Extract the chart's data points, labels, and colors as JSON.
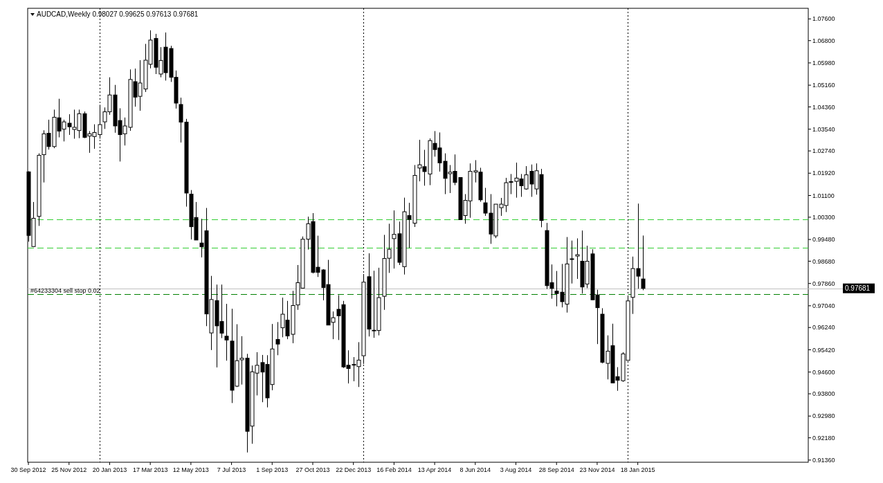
{
  "chart_data": {
    "type": "candlestick",
    "title": "AUDCAD,Weekly  0.98027 0.99625 0.97613 0.97681",
    "x": [
      "2012-09-30",
      "2012-10-07",
      "2012-10-14",
      "2012-10-21",
      "2012-10-28",
      "2012-11-04",
      "2012-11-11",
      "2012-11-18",
      "2012-11-25",
      "2012-12-02",
      "2012-12-09",
      "2012-12-16",
      "2012-12-23",
      "2012-12-30",
      "2013-01-06",
      "2013-01-13",
      "2013-01-20",
      "2013-01-27",
      "2013-02-03",
      "2013-02-10",
      "2013-02-17",
      "2013-02-24",
      "2013-03-03",
      "2013-03-10",
      "2013-03-17",
      "2013-03-24",
      "2013-03-31",
      "2013-04-07",
      "2013-04-14",
      "2013-04-21",
      "2013-04-28",
      "2013-05-05",
      "2013-05-12",
      "2013-05-19",
      "2013-05-26",
      "2013-06-02",
      "2013-06-09",
      "2013-06-16",
      "2013-06-23",
      "2013-06-30",
      "2013-07-07",
      "2013-07-14",
      "2013-07-21",
      "2013-07-28",
      "2013-08-04",
      "2013-08-11",
      "2013-08-18",
      "2013-08-25",
      "2013-09-01",
      "2013-09-08",
      "2013-09-15",
      "2013-09-22",
      "2013-09-29",
      "2013-10-06",
      "2013-10-13",
      "2013-10-20",
      "2013-10-27",
      "2013-11-03",
      "2013-11-10",
      "2013-11-17",
      "2013-11-24",
      "2013-12-01",
      "2013-12-08",
      "2013-12-15",
      "2013-12-22",
      "2013-12-29",
      "2014-01-05",
      "2014-01-12",
      "2014-01-19",
      "2014-01-26",
      "2014-02-02",
      "2014-02-09",
      "2014-02-16",
      "2014-02-23",
      "2014-03-02",
      "2014-03-09",
      "2014-03-16",
      "2014-03-23",
      "2014-03-30",
      "2014-04-06",
      "2014-04-13",
      "2014-04-20",
      "2014-04-27",
      "2014-05-04",
      "2014-05-11",
      "2014-05-18",
      "2014-05-25",
      "2014-06-01",
      "2014-06-08",
      "2014-06-15",
      "2014-06-22",
      "2014-06-29",
      "2014-07-06",
      "2014-07-13",
      "2014-07-20",
      "2014-07-27",
      "2014-08-03",
      "2014-08-10",
      "2014-08-17",
      "2014-08-24",
      "2014-08-31",
      "2014-09-07",
      "2014-09-14",
      "2014-09-21",
      "2014-09-28",
      "2014-10-05",
      "2014-10-12",
      "2014-10-19",
      "2014-10-26",
      "2014-11-02",
      "2014-11-09",
      "2014-11-16",
      "2014-11-23",
      "2014-11-30",
      "2014-12-07",
      "2014-12-14",
      "2014-12-21",
      "2014-12-28",
      "2015-01-04",
      "2015-01-11",
      "2015-01-18",
      "2015-01-25"
    ],
    "ohlc": [
      [
        1.0197,
        1.0199,
        0.994,
        0.9963
      ],
      [
        0.9922,
        1.0086,
        0.992,
        1.0026
      ],
      [
        1.0033,
        1.0265,
        0.9998,
        1.0258
      ],
      [
        1.026,
        1.035,
        1.0158,
        1.0337
      ],
      [
        1.0339,
        1.0389,
        1.0279,
        1.029
      ],
      [
        1.029,
        1.0426,
        1.0284,
        1.0398
      ],
      [
        1.0396,
        1.0466,
        1.0324,
        1.0347
      ],
      [
        1.0354,
        1.0389,
        1.0309,
        1.0381
      ],
      [
        1.0376,
        1.0409,
        1.0333,
        1.0363
      ],
      [
        1.0353,
        1.0426,
        1.0319,
        1.0361
      ],
      [
        1.0349,
        1.0426,
        1.0321,
        1.0411
      ],
      [
        1.0411,
        1.0419,
        1.0321,
        1.0324
      ],
      [
        1.0329,
        1.0347,
        1.0267,
        1.0337
      ],
      [
        1.0327,
        1.0372,
        1.0282,
        1.0342
      ],
      [
        1.0334,
        1.0444,
        1.0319,
        1.0371
      ],
      [
        1.0381,
        1.0434,
        1.0355,
        1.0418
      ],
      [
        1.0418,
        1.0545,
        1.0407,
        1.048
      ],
      [
        1.048,
        1.0517,
        1.0341,
        1.0366
      ],
      [
        1.0386,
        1.0431,
        1.0235,
        1.0334
      ],
      [
        1.0337,
        1.0397,
        1.0294,
        1.0366
      ],
      [
        1.0361,
        1.0574,
        1.0348,
        1.0537
      ],
      [
        1.0529,
        1.0577,
        1.0437,
        1.0472
      ],
      [
        1.0475,
        1.0608,
        1.0422,
        1.0524
      ],
      [
        1.0502,
        1.0668,
        1.0491,
        1.0608
      ],
      [
        1.0593,
        1.0718,
        1.0578,
        1.0682
      ],
      [
        1.0688,
        1.0705,
        1.0557,
        1.0582
      ],
      [
        1.0557,
        1.0656,
        1.0545,
        1.0607
      ],
      [
        1.0656,
        1.071,
        1.0533,
        1.0562
      ],
      [
        1.0651,
        1.0661,
        1.0528,
        1.0545
      ],
      [
        1.0545,
        1.057,
        1.043,
        1.045
      ],
      [
        1.0445,
        1.047,
        1.0305,
        1.038
      ],
      [
        1.038,
        1.0392,
        1.0069,
        1.0119
      ],
      [
        1.0115,
        1.013,
        0.9948,
        0.9995
      ],
      [
        1.0029,
        1.0086,
        0.9946,
        0.9946
      ],
      [
        0.9935,
        1.0024,
        0.9882,
        0.9921
      ],
      [
        0.998,
        1.0064,
        0.9629,
        0.9674
      ],
      [
        0.9604,
        0.9814,
        0.9541,
        0.9727
      ],
      [
        0.9723,
        0.9782,
        0.9477,
        0.963
      ],
      [
        0.9646,
        0.9782,
        0.9585,
        0.9603
      ],
      [
        0.9592,
        0.9711,
        0.9502,
        0.9578
      ],
      [
        0.9574,
        0.9693,
        0.9346,
        0.9393
      ],
      [
        0.9408,
        0.9636,
        0.9405,
        0.9502
      ],
      [
        0.9505,
        0.9592,
        0.9414,
        0.9511
      ],
      [
        0.9511,
        0.9527,
        0.9164,
        0.9242
      ],
      [
        0.9261,
        0.9484,
        0.9196,
        0.9461
      ],
      [
        0.9456,
        0.9533,
        0.9374,
        0.9485
      ],
      [
        0.9495,
        0.9523,
        0.9349,
        0.946
      ],
      [
        0.9488,
        0.9522,
        0.933,
        0.9365
      ],
      [
        0.9414,
        0.9637,
        0.9393,
        0.9545
      ],
      [
        0.958,
        0.9644,
        0.9522,
        0.9563
      ],
      [
        0.9623,
        0.9734,
        0.9588,
        0.9673
      ],
      [
        0.9651,
        0.9722,
        0.9581,
        0.9593
      ],
      [
        0.9599,
        0.9759,
        0.9566,
        0.9705
      ],
      [
        0.9707,
        0.9854,
        0.9689,
        0.9789
      ],
      [
        0.9769,
        0.9959,
        0.9769,
        0.9949
      ],
      [
        0.9949,
        1.0032,
        0.9911,
        1.0006
      ],
      [
        1.0014,
        1.0045,
        0.9823,
        0.9827
      ],
      [
        0.9846,
        0.9962,
        0.981,
        0.9827
      ],
      [
        0.9836,
        0.9839,
        0.9724,
        0.9771
      ],
      [
        0.9782,
        0.9873,
        0.9633,
        0.9633
      ],
      [
        0.9643,
        0.9683,
        0.9581,
        0.966
      ],
      [
        0.9691,
        0.9743,
        0.9578,
        0.9667
      ],
      [
        0.9708,
        0.9722,
        0.9475,
        0.9479
      ],
      [
        0.9485,
        0.954,
        0.9418,
        0.9473
      ],
      [
        0.9488,
        0.9515,
        0.9426,
        0.9488
      ],
      [
        0.948,
        0.957,
        0.9405,
        0.9504
      ],
      [
        0.952,
        0.9821,
        0.949,
        0.9791
      ],
      [
        0.9811,
        0.9897,
        0.9591,
        0.9618
      ],
      [
        0.9614,
        0.9833,
        0.9586,
        0.9614
      ],
      [
        0.9613,
        0.9844,
        0.9595,
        0.9734
      ],
      [
        0.9739,
        0.9965,
        0.9689,
        0.9878
      ],
      [
        0.9879,
        1.0006,
        0.9825,
        0.9912
      ],
      [
        0.9951,
        1.0055,
        0.9841,
        0.9967
      ],
      [
        0.9969,
        1.0014,
        0.9854,
        0.9864
      ],
      [
        0.9848,
        1.0102,
        0.9819,
        1.005
      ],
      [
        1.0036,
        1.0083,
        0.9917,
        1.0022
      ],
      [
        1.0008,
        1.0222,
        0.9994,
        1.0184
      ],
      [
        1.0211,
        1.0315,
        1.0162,
        1.0223
      ],
      [
        1.0216,
        1.0278,
        1.0146,
        1.0198
      ],
      [
        1.0189,
        1.032,
        1.0148,
        1.0312
      ],
      [
        1.0302,
        1.0347,
        1.0253,
        1.0279
      ],
      [
        1.0285,
        1.0342,
        1.0198,
        1.023
      ],
      [
        1.0236,
        1.0265,
        1.0115,
        1.0173
      ],
      [
        1.019,
        1.0222,
        1.0119,
        1.0196
      ],
      [
        1.0199,
        1.0261,
        1.0148,
        1.0158
      ],
      [
        1.0176,
        1.0177,
        1.0021,
        1.0021
      ],
      [
        1.0036,
        1.0115,
        1.0006,
        1.0092
      ],
      [
        1.009,
        1.0228,
        1.0028,
        1.0199
      ],
      [
        1.0196,
        1.024,
        1.0158,
        1.0201
      ],
      [
        1.0196,
        1.0212,
        1.0087,
        1.0094
      ],
      [
        1.0083,
        1.0138,
        1.0035,
        1.0045
      ],
      [
        1.0045,
        1.0115,
        0.9932,
        0.9968
      ],
      [
        0.9961,
        1.0078,
        0.9953,
        1.0078
      ],
      [
        1.0065,
        1.0101,
        1.0035,
        1.0078
      ],
      [
        1.0073,
        1.0175,
        1.0049,
        1.0157
      ],
      [
        1.0161,
        1.0189,
        1.0115,
        1.0161
      ],
      [
        1.0162,
        1.0231,
        1.0102,
        1.0174
      ],
      [
        1.0171,
        1.0189,
        1.0105,
        1.0146
      ],
      [
        1.0134,
        1.0218,
        1.0131,
        1.0186
      ],
      [
        1.0199,
        1.0224,
        1.0105,
        1.0152
      ],
      [
        1.0134,
        1.0228,
        1.0113,
        1.0201
      ],
      [
        1.0187,
        1.0208,
        0.9993,
        1.0018
      ],
      [
        0.9981,
        1.0009,
        0.9766,
        0.9778
      ],
      [
        0.9789,
        0.9856,
        0.973,
        0.9768
      ],
      [
        0.9758,
        0.9832,
        0.9702,
        0.9749
      ],
      [
        0.9754,
        0.9858,
        0.9698,
        0.9719
      ],
      [
        0.971,
        0.9957,
        0.9679,
        0.9858
      ],
      [
        0.9877,
        0.9944,
        0.9786,
        0.9877
      ],
      [
        0.9887,
        0.9952,
        0.9803,
        0.9892
      ],
      [
        0.9868,
        0.9981,
        0.9749,
        0.9773
      ],
      [
        0.9784,
        0.9925,
        0.9769,
        0.9868
      ],
      [
        0.9895,
        0.9912,
        0.9725,
        0.9726
      ],
      [
        0.9744,
        0.9763,
        0.9563,
        0.9697
      ],
      [
        0.9673,
        0.9695,
        0.9492,
        0.9496
      ],
      [
        0.9492,
        0.9595,
        0.9433,
        0.9537
      ],
      [
        0.9557,
        0.9638,
        0.942,
        0.942
      ],
      [
        0.9443,
        0.9478,
        0.9391,
        0.943
      ],
      [
        0.9428,
        0.9533,
        0.9424,
        0.9527
      ],
      [
        0.9503,
        0.9737,
        0.9503,
        0.9722
      ],
      [
        0.9735,
        0.9885,
        0.9674,
        0.9841
      ],
      [
        0.9841,
        1.008,
        0.9767,
        0.9813
      ],
      [
        0.98027,
        0.99625,
        0.97613,
        0.97681
      ]
    ],
    "xlim": [
      "2012-09-29",
      "2015-09-10"
    ],
    "xticks": [
      {
        "value": "2012-09-30",
        "label": "30 Sep 2012"
      },
      {
        "value": "2012-11-25",
        "label": "25 Nov 2012"
      },
      {
        "value": "2013-01-20",
        "label": "20 Jan 2013"
      },
      {
        "value": "2013-03-17",
        "label": "17 Mar 2013"
      },
      {
        "value": "2013-05-12",
        "label": "12 May 2013"
      },
      {
        "value": "2013-07-07",
        "label": "7 Jul 2013"
      },
      {
        "value": "2013-09-01",
        "label": "1 Sep 2013"
      },
      {
        "value": "2013-10-27",
        "label": "27 Oct 2013"
      },
      {
        "value": "2013-12-22",
        "label": "22 Dec 2013"
      },
      {
        "value": "2014-02-16",
        "label": "16 Feb 2014"
      },
      {
        "value": "2014-04-13",
        "label": "13 Apr 2014"
      },
      {
        "value": "2014-06-08",
        "label": "8 Jun 2014"
      },
      {
        "value": "2014-08-03",
        "label": "3 Aug 2014"
      },
      {
        "value": "2014-09-28",
        "label": "28 Sep 2014"
      },
      {
        "value": "2014-11-23",
        "label": "23 Nov 2014"
      },
      {
        "value": "2015-01-18",
        "label": "18 Jan 2015"
      }
    ],
    "ylim": [
      0.9128,
      1.0799
    ],
    "yticks": [
      {
        "value": 1.076,
        "label": "1.07600"
      },
      {
        "value": 1.068,
        "label": "1.06800"
      },
      {
        "value": 1.0598,
        "label": "1.05980"
      },
      {
        "value": 1.0516,
        "label": "1.05160"
      },
      {
        "value": 1.0436,
        "label": "1.04360"
      },
      {
        "value": 1.0354,
        "label": "1.03540"
      },
      {
        "value": 1.0274,
        "label": "1.02740"
      },
      {
        "value": 1.0192,
        "label": "1.01920"
      },
      {
        "value": 1.011,
        "label": "1.01100"
      },
      {
        "value": 1.003,
        "label": "1.00300"
      },
      {
        "value": 0.9948,
        "label": "0.99480"
      },
      {
        "value": 0.9868,
        "label": "0.98680"
      },
      {
        "value": 0.9786,
        "label": "0.97860"
      },
      {
        "value": 0.9704,
        "label": "0.97040"
      },
      {
        "value": 0.9624,
        "label": "0.96240"
      },
      {
        "value": 0.9542,
        "label": "0.95420"
      },
      {
        "value": 0.946,
        "label": "0.94600"
      },
      {
        "value": 0.938,
        "label": "0.93800"
      },
      {
        "value": 0.9298,
        "label": "0.92980"
      },
      {
        "value": 0.9218,
        "label": "0.92180"
      },
      {
        "value": 0.9136,
        "label": "0.91360"
      }
    ],
    "ref_lines": [
      {
        "axis": "y",
        "value": 1.0022,
        "color": "#32cd32",
        "line_style": "dashed"
      },
      {
        "axis": "y",
        "value": 0.9918,
        "color": "#32cd32",
        "line_style": "dashed"
      },
      {
        "axis": "y",
        "value": 0.97681,
        "label": "0.97681",
        "color": "#c0c0c0",
        "line_style": "solid"
      },
      {
        "axis": "y",
        "value": 0.9748,
        "label": "#64233304 sell stop 0.02",
        "color": "#008000",
        "line_style": "dashed"
      },
      {
        "axis": "x",
        "value": "2013-01-06",
        "color": "#000000",
        "line_style": "dotted"
      },
      {
        "axis": "x",
        "value": "2014-01-05",
        "color": "#000000",
        "line_style": "dotted"
      },
      {
        "axis": "x",
        "value": "2015-01-04",
        "color": "#000000",
        "line_style": "dotted"
      }
    ]
  }
}
